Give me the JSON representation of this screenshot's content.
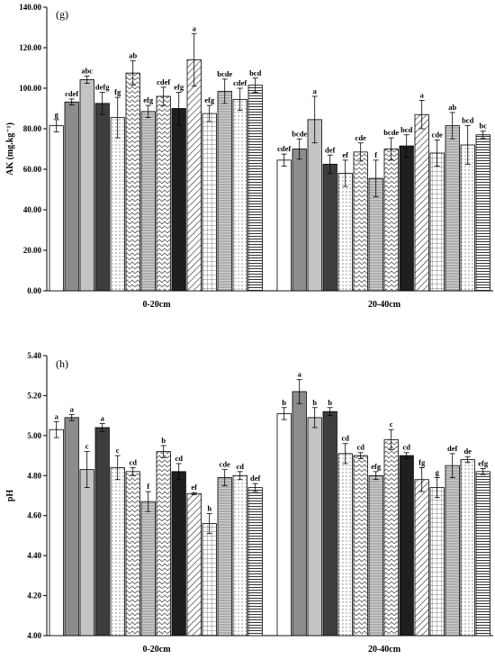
{
  "chart_data": [
    {
      "type": "bar",
      "panel_label": "(g)",
      "ylabel": "AK (mg.kg⁻¹)",
      "ylim": [
        0,
        140
      ],
      "ytick_labels": [
        "0.00",
        "20.00",
        "40.00",
        "60.00",
        "80.00",
        "100.00",
        "120.00",
        "140.00"
      ],
      "categories": [
        "0-20cm",
        "20-40cm"
      ],
      "groups": [
        {
          "category": "0-20cm",
          "values": [
            81.5,
            93.2,
            104.2,
            92.5,
            85.5,
            107.5,
            88.5,
            96.0,
            90.0,
            114.0,
            87.5,
            98.5,
            94.5,
            101.5
          ],
          "errors": [
            3.0,
            1.5,
            1.8,
            5.5,
            10.0,
            6.0,
            3.0,
            4.5,
            8.0,
            13.0,
            4.0,
            6.0,
            5.5,
            3.5
          ],
          "letters": [
            "g",
            "cdef",
            "abc",
            "defg",
            "fg",
            "ab",
            "efg",
            "cdef",
            "efg",
            "a",
            "efg",
            "bcde",
            "cdef",
            "bcd"
          ]
        },
        {
          "category": "20-40cm",
          "values": [
            64.5,
            70.0,
            84.5,
            62.5,
            58.0,
            68.5,
            55.5,
            70.0,
            71.5,
            87.0,
            68.0,
            81.5,
            72.0,
            77.0
          ],
          "errors": [
            3.0,
            5.0,
            11.5,
            4.5,
            6.5,
            4.5,
            9.0,
            5.5,
            5.5,
            7.0,
            6.5,
            6.5,
            9.5,
            1.8
          ],
          "letters": [
            "cdef",
            "bcde",
            "a",
            "def",
            "ef",
            "cde",
            "f",
            "bcde",
            "bcd",
            "a",
            "cde",
            "ab",
            "bcd",
            "bc"
          ]
        }
      ]
    },
    {
      "type": "bar",
      "panel_label": "(h)",
      "ylabel": "pH",
      "ylim": [
        4.0,
        5.4
      ],
      "ytick_labels": [
        "4.00",
        "4.20",
        "4.40",
        "4.60",
        "4.80",
        "5.00",
        "5.20",
        "5.40"
      ],
      "categories": [
        "0-20cm",
        "20-40cm"
      ],
      "groups": [
        {
          "category": "0-20cm",
          "values": [
            5.03,
            5.09,
            4.83,
            5.04,
            4.84,
            4.82,
            4.67,
            4.92,
            4.82,
            4.71,
            4.56,
            4.79,
            4.8,
            4.74
          ],
          "errors": [
            0.04,
            0.015,
            0.09,
            0.02,
            0.06,
            0.02,
            0.05,
            0.03,
            0.04,
            0.005,
            0.05,
            0.04,
            0.02,
            0.02
          ],
          "letters": [
            "a",
            "a",
            "c",
            "a",
            "c",
            "cd",
            "f",
            "b",
            "cd",
            "ef",
            "h",
            "cde",
            "cd",
            "def"
          ]
        },
        {
          "category": "20-40cm",
          "values": [
            5.11,
            5.22,
            5.09,
            5.12,
            4.91,
            4.9,
            4.8,
            4.98,
            4.9,
            4.78,
            4.74,
            4.85,
            4.88,
            4.82
          ],
          "errors": [
            0.03,
            0.06,
            0.05,
            0.02,
            0.05,
            0.015,
            0.02,
            0.05,
            0.015,
            0.06,
            0.05,
            0.06,
            0.015,
            0.015
          ],
          "letters": [
            "b",
            "a",
            "b",
            "b",
            "cd",
            "cd",
            "efg",
            "c",
            "cd",
            "fg",
            "g",
            "def",
            "de",
            "efg"
          ]
        }
      ]
    }
  ]
}
